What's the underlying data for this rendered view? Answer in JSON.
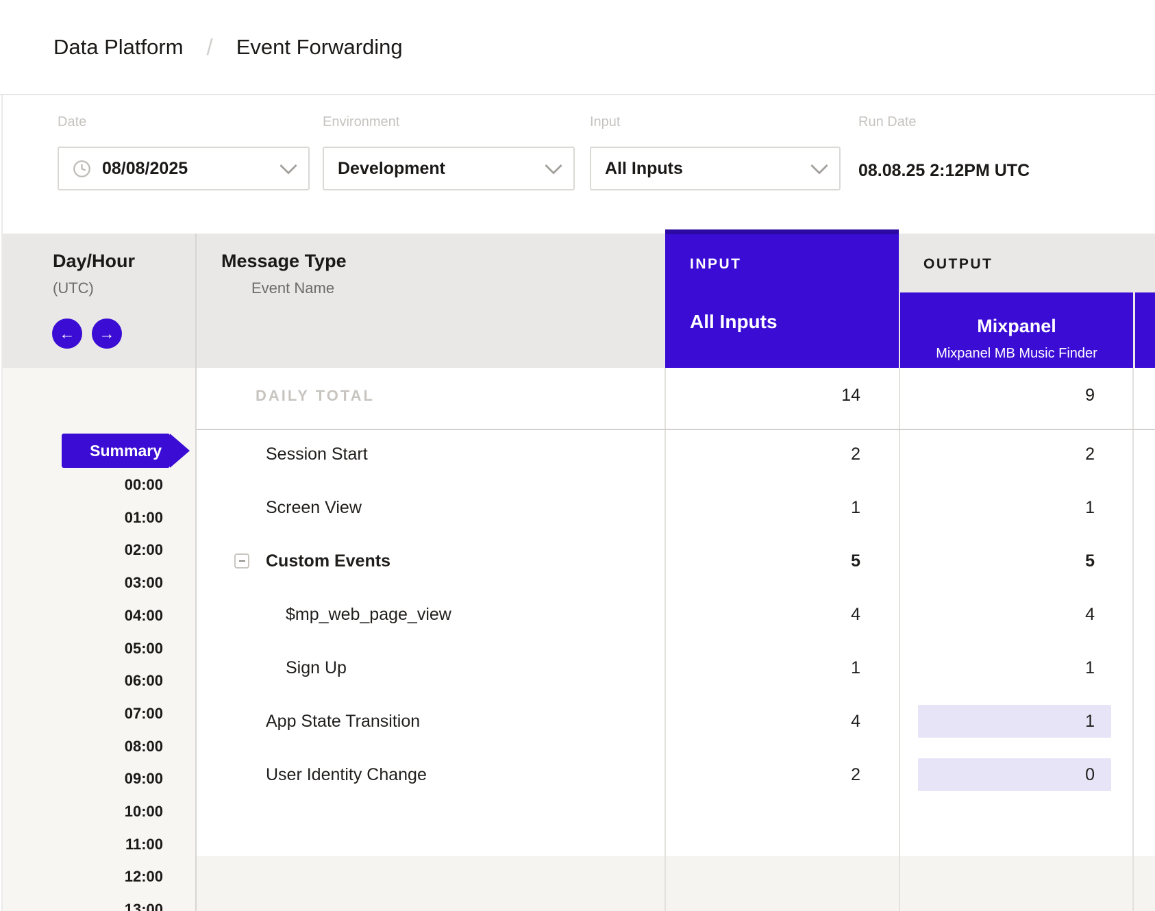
{
  "breadcrumb": {
    "parent": "Data Platform",
    "separator": "/",
    "current": "Event Forwarding"
  },
  "filters": {
    "date": {
      "label": "Date",
      "value": "08/08/2025"
    },
    "environment": {
      "label": "Environment",
      "value": "Development"
    },
    "input": {
      "label": "Input",
      "value": "All Inputs"
    },
    "run_date": {
      "label": "Run Date",
      "value": "08.08.25 2:12PM UTC"
    }
  },
  "table": {
    "day_hour_header": {
      "title": "Day/Hour",
      "subtitle": "(UTC)"
    },
    "message_type_header": {
      "title": "Message Type",
      "subtitle": "Event Name"
    },
    "input_column": {
      "section_label": "INPUT",
      "name": "All Inputs"
    },
    "output_column": {
      "section_label": "OUTPUT",
      "name": "Mixpanel",
      "subtitle": "Mixpanel MB Music Finder"
    },
    "daily_total": {
      "label": "DAILY TOTAL",
      "input_count": "14",
      "output_count": "9"
    },
    "rows": [
      {
        "label": "Session Start",
        "input_count": "2",
        "output_count": "2",
        "level": 0,
        "bold": false,
        "collapsible": false,
        "output_highlight": false
      },
      {
        "label": "Screen View",
        "input_count": "1",
        "output_count": "1",
        "level": 0,
        "bold": false,
        "collapsible": false,
        "output_highlight": false
      },
      {
        "label": "Custom Events",
        "input_count": "5",
        "output_count": "5",
        "level": 0,
        "bold": true,
        "collapsible": true,
        "output_highlight": false
      },
      {
        "label": "$mp_web_page_view",
        "input_count": "4",
        "output_count": "4",
        "level": 1,
        "bold": false,
        "collapsible": false,
        "output_highlight": false
      },
      {
        "label": "Sign Up",
        "input_count": "1",
        "output_count": "1",
        "level": 1,
        "bold": false,
        "collapsible": false,
        "output_highlight": false
      },
      {
        "label": "App State Transition",
        "input_count": "4",
        "output_count": "1",
        "level": 0,
        "bold": false,
        "collapsible": false,
        "output_highlight": true
      },
      {
        "label": "User Identity Change",
        "input_count": "2",
        "output_count": "0",
        "level": 0,
        "bold": false,
        "collapsible": false,
        "output_highlight": true
      }
    ],
    "sidebar": {
      "summary_label": "Summary",
      "hours": [
        "00:00",
        "01:00",
        "02:00",
        "03:00",
        "04:00",
        "05:00",
        "06:00",
        "07:00",
        "08:00",
        "09:00",
        "10:00",
        "11:00",
        "12:00",
        "13:00"
      ]
    }
  },
  "colors": {
    "accent_purple": "#3A0CD4",
    "accent_purple_dark": "#2B09A2",
    "highlight_lavender": "#E7E4F8"
  }
}
